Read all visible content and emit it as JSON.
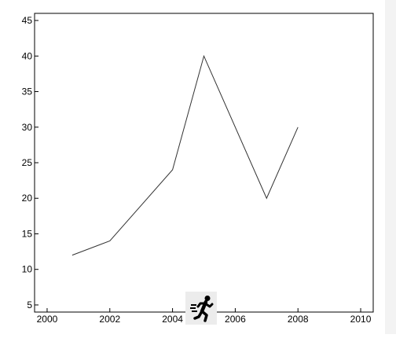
{
  "colors": {
    "line": "#333333",
    "axis": "#000000",
    "background": "#ffffff",
    "badge_bg": "#ececec",
    "icon": "#000000"
  },
  "icons": {
    "badge": "running-person-icon"
  },
  "chart_data": {
    "type": "line",
    "title": "",
    "xlabel": "",
    "ylabel": "",
    "xlim": [
      1999.6,
      2010.4
    ],
    "ylim": [
      4,
      46
    ],
    "x_ticks": [
      2000,
      2002,
      2004,
      2006,
      2008,
      2010
    ],
    "y_ticks": [
      5,
      10,
      15,
      20,
      25,
      30,
      35,
      40,
      45
    ],
    "grid": false,
    "legend": "none",
    "series": [
      {
        "x": [
          2000.8,
          2002,
          2004,
          2005,
          2007,
          2008
        ],
        "y": [
          12,
          14,
          24,
          40,
          20,
          30
        ]
      }
    ]
  }
}
